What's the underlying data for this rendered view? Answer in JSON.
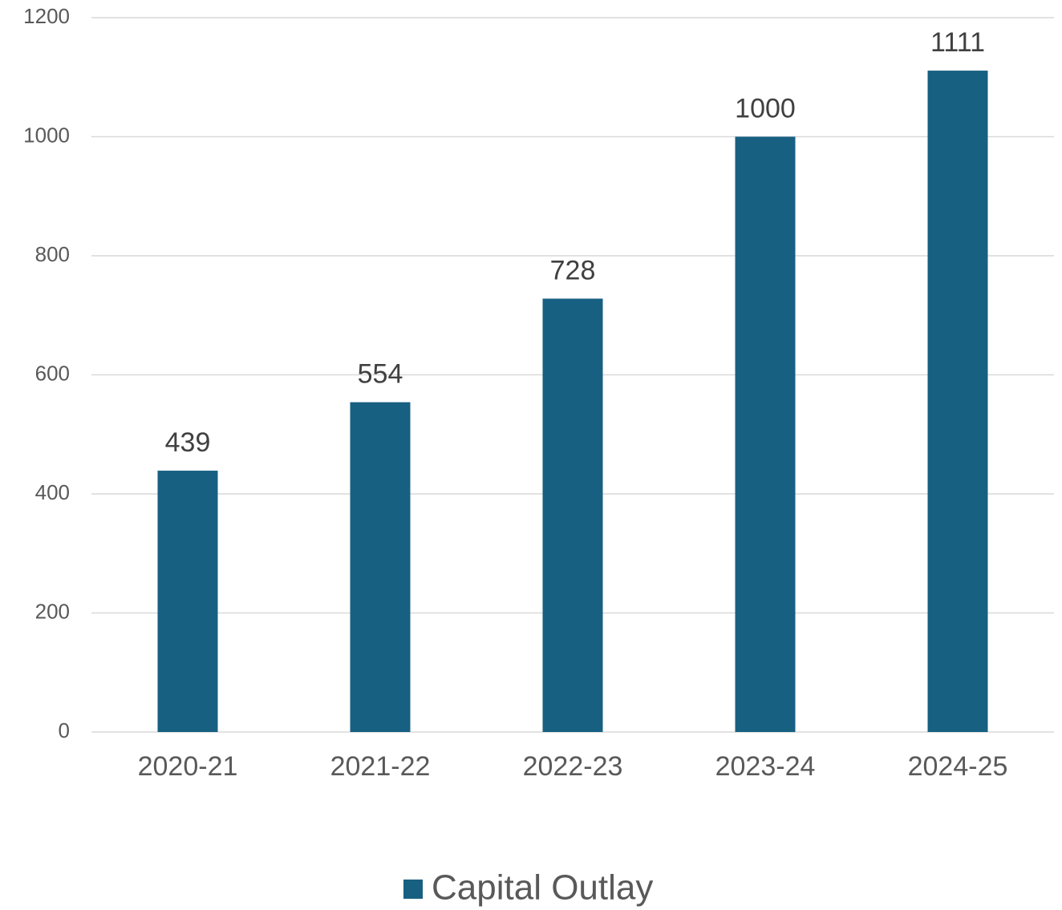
{
  "chart_data": {
    "type": "bar",
    "categories": [
      "2020-21",
      "2021-22",
      "2022-23",
      "2023-24",
      "2024-25"
    ],
    "series": [
      {
        "name": "Capital Outlay",
        "color": "#176082",
        "values": [
          439,
          554,
          728,
          1000,
          1111
        ]
      }
    ],
    "ylim": [
      0,
      1200
    ],
    "yticks": [
      0,
      200,
      400,
      600,
      800,
      1000,
      1200
    ],
    "grid": true,
    "legend": "bottom"
  }
}
